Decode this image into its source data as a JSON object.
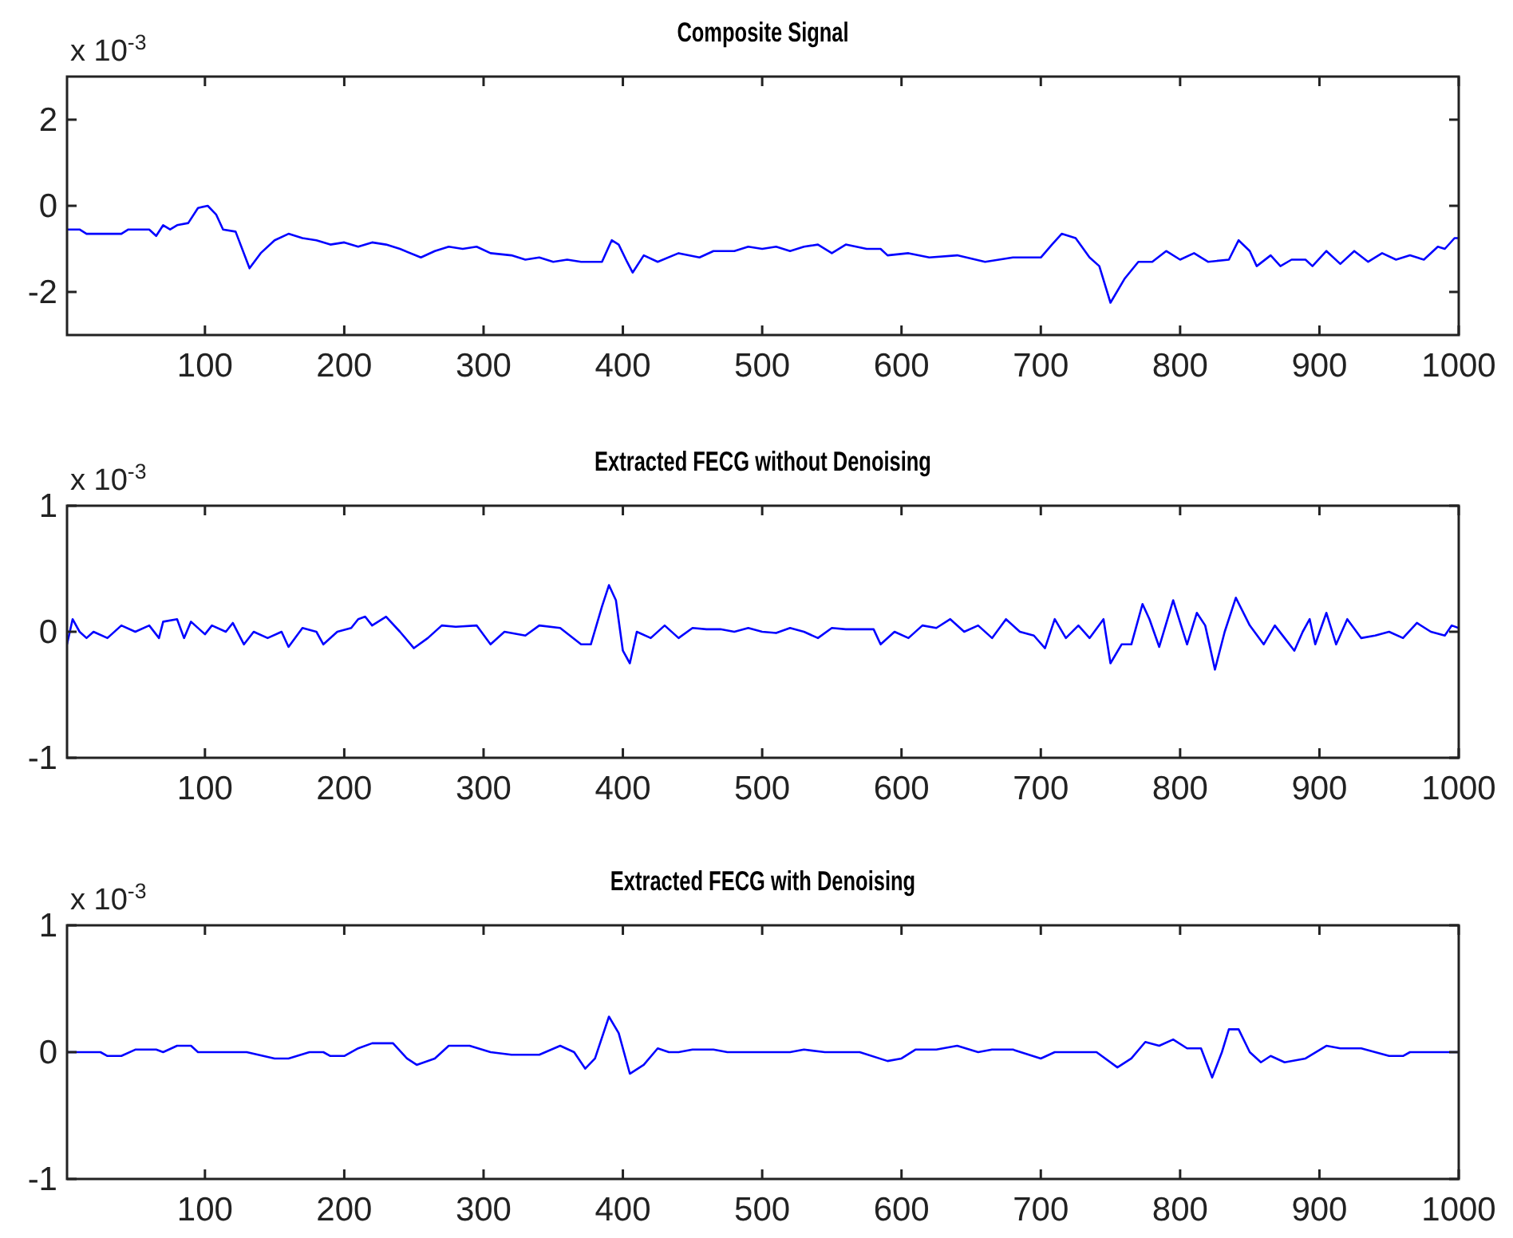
{
  "chart_data": [
    {
      "type": "line",
      "title": "Composite Signal",
      "annotations": [
        "x 10$^{-3}$"
      ],
      "xlim": [
        1,
        1000
      ],
      "xticks": [
        100,
        200,
        300,
        400,
        500,
        600,
        700,
        800,
        900,
        1000
      ],
      "ylim": [
        -3,
        3
      ],
      "yticks": [
        -2,
        0,
        2
      ],
      "series": [
        {
          "color": "#0000ff",
          "x": [
            1,
            10,
            15,
            40,
            45,
            60,
            65,
            70,
            75,
            80,
            88,
            95,
            102,
            108,
            113,
            122,
            132,
            140,
            150,
            160,
            170,
            180,
            190,
            200,
            210,
            220,
            230,
            240,
            255,
            265,
            275,
            285,
            295,
            305,
            320,
            330,
            340,
            350,
            360,
            370,
            385,
            392,
            397,
            403,
            407,
            415,
            425,
            440,
            455,
            465,
            480,
            490,
            500,
            510,
            520,
            530,
            540,
            550,
            560,
            575,
            585,
            590,
            605,
            620,
            640,
            660,
            680,
            700,
            708,
            715,
            725,
            735,
            742,
            750,
            760,
            770,
            780,
            790,
            800,
            810,
            820,
            835,
            842,
            850,
            855,
            865,
            872,
            880,
            890,
            895,
            905,
            915,
            925,
            935,
            945,
            955,
            965,
            975,
            985,
            990,
            997,
            1000
          ],
          "values": [
            -0.55,
            -0.55,
            -0.65,
            -0.65,
            -0.55,
            -0.55,
            -0.7,
            -0.45,
            -0.55,
            -0.45,
            -0.4,
            -0.05,
            0,
            -0.2,
            -0.55,
            -0.6,
            -1.45,
            -1.1,
            -0.8,
            -0.65,
            -0.75,
            -0.8,
            -0.9,
            -0.85,
            -0.95,
            -0.85,
            -0.9,
            -1.0,
            -1.2,
            -1.05,
            -0.95,
            -1.0,
            -0.95,
            -1.1,
            -1.15,
            -1.25,
            -1.2,
            -1.3,
            -1.25,
            -1.3,
            -1.3,
            -0.8,
            -0.9,
            -1.3,
            -1.55,
            -1.15,
            -1.3,
            -1.1,
            -1.2,
            -1.05,
            -1.05,
            -0.95,
            -1.0,
            -0.95,
            -1.05,
            -0.95,
            -0.9,
            -1.1,
            -0.9,
            -1.0,
            -1.0,
            -1.15,
            -1.1,
            -1.2,
            -1.15,
            -1.3,
            -1.2,
            -1.2,
            -0.9,
            -0.65,
            -0.75,
            -1.2,
            -1.4,
            -2.25,
            -1.7,
            -1.3,
            -1.3,
            -1.05,
            -1.25,
            -1.1,
            -1.3,
            -1.25,
            -0.8,
            -1.05,
            -1.4,
            -1.15,
            -1.4,
            -1.25,
            -1.25,
            -1.4,
            -1.05,
            -1.35,
            -1.05,
            -1.3,
            -1.1,
            -1.25,
            -1.15,
            -1.25,
            -0.95,
            -1.0,
            -0.75,
            -0.75
          ]
        }
      ]
    },
    {
      "type": "line",
      "title": "Extracted FECG without Denoising",
      "annotations": [
        "x 10$^{-3}$"
      ],
      "xlim": [
        1,
        1000
      ],
      "xticks": [
        100,
        200,
        300,
        400,
        500,
        600,
        700,
        800,
        900,
        1000
      ],
      "ylim": [
        -1,
        1
      ],
      "yticks": [
        -1,
        0,
        1
      ],
      "series": [
        {
          "color": "#0000ff",
          "x": [
            1,
            5,
            10,
            15,
            20,
            30,
            40,
            50,
            60,
            67,
            70,
            80,
            85,
            90,
            100,
            105,
            115,
            120,
            128,
            135,
            145,
            155,
            160,
            170,
            180,
            185,
            195,
            205,
            210,
            215,
            220,
            230,
            240,
            250,
            260,
            270,
            280,
            295,
            305,
            315,
            330,
            340,
            355,
            370,
            377,
            385,
            390,
            395,
            400,
            405,
            410,
            420,
            430,
            440,
            450,
            460,
            470,
            480,
            490,
            500,
            510,
            520,
            530,
            540,
            550,
            560,
            580,
            585,
            595,
            605,
            615,
            625,
            635,
            645,
            655,
            665,
            675,
            685,
            695,
            703,
            710,
            718,
            727,
            735,
            745,
            750,
            758,
            765,
            773,
            778,
            785,
            795,
            805,
            812,
            818,
            825,
            832,
            840,
            850,
            860,
            868,
            875,
            882,
            888,
            893,
            897,
            905,
            912,
            920,
            930,
            940,
            950,
            960,
            970,
            980,
            990,
            995,
            1000
          ],
          "values": [
            -0.1,
            0.1,
            0.0,
            -0.05,
            0.0,
            -0.05,
            0.05,
            0.0,
            0.05,
            -0.05,
            0.08,
            0.1,
            -0.05,
            0.08,
            -0.02,
            0.05,
            0.0,
            0.07,
            -0.1,
            0.0,
            -0.05,
            0.0,
            -0.12,
            0.03,
            0.0,
            -0.1,
            0.0,
            0.03,
            0.1,
            0.12,
            0.05,
            0.12,
            0.0,
            -0.13,
            -0.05,
            0.05,
            0.04,
            0.05,
            -0.1,
            0.0,
            -0.03,
            0.05,
            0.03,
            -0.1,
            -0.1,
            0.2,
            0.37,
            0.25,
            -0.15,
            -0.25,
            0.0,
            -0.05,
            0.05,
            -0.05,
            0.03,
            0.02,
            0.02,
            0.0,
            0.03,
            0.0,
            -0.01,
            0.03,
            0.0,
            -0.05,
            0.03,
            0.02,
            0.02,
            -0.1,
            0.0,
            -0.05,
            0.05,
            0.03,
            0.1,
            0.0,
            0.05,
            -0.05,
            0.1,
            0.0,
            -0.03,
            -0.13,
            0.1,
            -0.05,
            0.05,
            -0.05,
            0.1,
            -0.25,
            -0.1,
            -0.1,
            0.22,
            0.1,
            -0.12,
            0.25,
            -0.1,
            0.15,
            0.05,
            -0.3,
            0.0,
            0.27,
            0.05,
            -0.1,
            0.05,
            -0.05,
            -0.15,
            0.0,
            0.1,
            -0.1,
            0.15,
            -0.1,
            0.1,
            -0.05,
            -0.03,
            0.0,
            -0.05,
            0.07,
            0.0,
            -0.03,
            0.05,
            0.03
          ]
        }
      ]
    },
    {
      "type": "line",
      "title": "Extracted FECG with Denoising",
      "annotations": [
        "x 10$^{-3}$"
      ],
      "xlim": [
        1,
        1000
      ],
      "xticks": [
        100,
        200,
        300,
        400,
        500,
        600,
        700,
        800,
        900,
        1000
      ],
      "ylim": [
        -1,
        1
      ],
      "yticks": [
        -1,
        0,
        1
      ],
      "series": [
        {
          "color": "#0000ff",
          "x": [
            1,
            25,
            30,
            40,
            50,
            65,
            70,
            80,
            90,
            95,
            130,
            150,
            160,
            175,
            185,
            190,
            200,
            210,
            220,
            235,
            245,
            252,
            265,
            275,
            290,
            305,
            320,
            340,
            355,
            365,
            373,
            380,
            390,
            397,
            405,
            415,
            425,
            433,
            440,
            450,
            465,
            475,
            520,
            530,
            545,
            570,
            590,
            600,
            610,
            625,
            640,
            655,
            665,
            680,
            700,
            710,
            740,
            755,
            765,
            775,
            785,
            795,
            805,
            815,
            823,
            830,
            835,
            842,
            850,
            858,
            865,
            875,
            890,
            905,
            915,
            930,
            940,
            950,
            960,
            965,
            1000
          ],
          "values": [
            0,
            0,
            -0.03,
            -0.03,
            0.02,
            0.02,
            0.0,
            0.05,
            0.05,
            0.0,
            0.0,
            -0.05,
            -0.05,
            0.0,
            0.0,
            -0.03,
            -0.03,
            0.03,
            0.07,
            0.07,
            -0.05,
            -0.1,
            -0.05,
            0.05,
            0.05,
            0.0,
            -0.02,
            -0.02,
            0.05,
            0.0,
            -0.13,
            -0.05,
            0.28,
            0.15,
            -0.17,
            -0.1,
            0.03,
            0.0,
            0.0,
            0.02,
            0.02,
            0.0,
            0.0,
            0.02,
            0.0,
            0.0,
            -0.07,
            -0.05,
            0.02,
            0.02,
            0.05,
            0.0,
            0.02,
            0.02,
            -0.05,
            0.0,
            0.0,
            -0.12,
            -0.05,
            0.08,
            0.05,
            0.1,
            0.03,
            0.03,
            -0.2,
            0.0,
            0.18,
            0.18,
            0.0,
            -0.08,
            -0.03,
            -0.08,
            -0.05,
            0.05,
            0.03,
            0.03,
            0.0,
            -0.03,
            -0.03,
            0.0,
            0.0
          ]
        }
      ]
    }
  ]
}
